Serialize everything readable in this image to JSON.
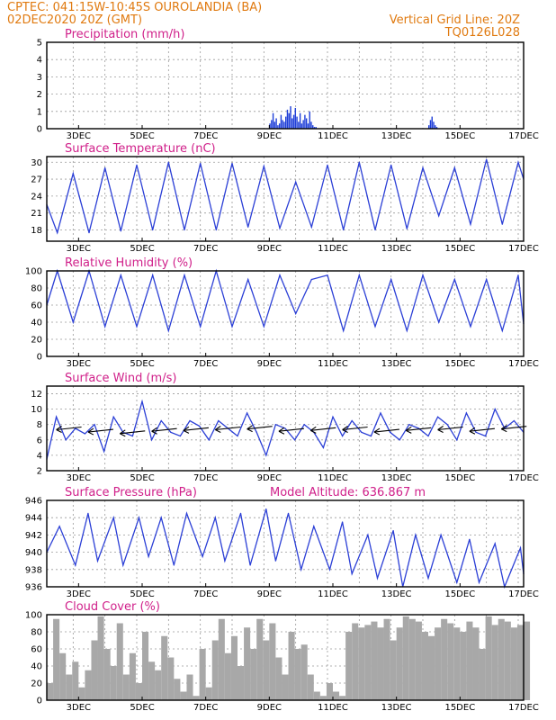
{
  "header": {
    "line1_left": "CPTEC:   041:15W-10:45S  OUROLANDIA (BA)",
    "line2_left": "02DEC2020 20Z (GMT)",
    "line1_right": "Vertical Grid Line: 20Z",
    "line2_right": "TQ0126L028"
  },
  "x_ticks": [
    "3DEC",
    "5DEC",
    "7DEC",
    "9DEC",
    "11DEC",
    "13DEC",
    "15DEC",
    "17DEC"
  ],
  "chart_data": [
    {
      "id": "precipitation",
      "type": "bar",
      "title": "Precipitation (mm/h)",
      "ylim": [
        0,
        5
      ],
      "yticks": [
        0,
        1,
        2,
        3,
        4,
        5
      ],
      "color": "#1f3fd8",
      "x_days": [
        9.0,
        9.05,
        9.1,
        9.15,
        9.2,
        9.25,
        9.3,
        9.35,
        9.4,
        9.45,
        9.5,
        9.55,
        9.6,
        9.65,
        9.7,
        9.75,
        9.8,
        9.85,
        9.9,
        9.95,
        10.0,
        10.05,
        10.1,
        10.15,
        10.2,
        10.25,
        10.3,
        10.35,
        10.4,
        10.45,
        14.0,
        14.05,
        14.1,
        14.15,
        14.2,
        14.25
      ],
      "values": [
        0.3,
        0.5,
        0.9,
        0.4,
        0.6,
        0.2,
        0.3,
        0.8,
        0.5,
        0.4,
        0.7,
        1.1,
        0.9,
        1.3,
        0.6,
        0.8,
        1.2,
        0.7,
        0.4,
        0.9,
        0.3,
        0.5,
        0.8,
        0.6,
        0.3,
        1.0,
        0.4,
        0.2,
        0.1,
        0.1,
        0.2,
        0.5,
        0.7,
        0.4,
        0.2,
        0.1
      ]
    },
    {
      "id": "temperature",
      "type": "line",
      "title": "Surface Temperature (nC)",
      "ylim": [
        16,
        31
      ],
      "yticks": [
        18,
        21,
        24,
        27,
        30
      ],
      "color": "#2b3fd6",
      "x_days": [
        2.0,
        2.33,
        2.83,
        3.33,
        3.83,
        4.33,
        4.83,
        5.33,
        5.83,
        6.33,
        6.83,
        7.33,
        7.83,
        8.33,
        8.83,
        9.33,
        9.83,
        10.33,
        10.83,
        11.33,
        11.83,
        12.33,
        12.83,
        13.33,
        13.83,
        14.33,
        14.83,
        15.33,
        15.83,
        16.33,
        16.83,
        17.0
      ],
      "values": [
        22.5,
        17.5,
        28.0,
        17.5,
        29.0,
        17.8,
        29.5,
        18.0,
        30.0,
        18.0,
        29.8,
        18.0,
        29.8,
        18.5,
        29.3,
        18.3,
        26.5,
        18.5,
        29.5,
        18.0,
        30.0,
        18.0,
        29.5,
        18.2,
        29.0,
        20.5,
        29.0,
        19.0,
        30.5,
        19.0,
        30.0,
        27.0
      ]
    },
    {
      "id": "humidity",
      "type": "line",
      "title": "Relative Humidity (%)",
      "ylim": [
        0,
        100
      ],
      "yticks": [
        0,
        20,
        40,
        60,
        80,
        100
      ],
      "color": "#2b3fd6",
      "x_days": [
        2.0,
        2.33,
        2.83,
        3.33,
        3.83,
        4.33,
        4.83,
        5.33,
        5.83,
        6.33,
        6.83,
        7.33,
        7.83,
        8.33,
        8.83,
        9.33,
        9.83,
        10.33,
        10.83,
        11.33,
        11.83,
        12.33,
        12.83,
        13.33,
        13.83,
        14.33,
        14.83,
        15.33,
        15.83,
        16.33,
        16.83,
        17.0
      ],
      "values": [
        60,
        100,
        40,
        100,
        35,
        95,
        35,
        95,
        30,
        95,
        35,
        100,
        35,
        90,
        35,
        95,
        50,
        90,
        95,
        30,
        95,
        35,
        90,
        30,
        95,
        40,
        90,
        35,
        90,
        30,
        95,
        38
      ]
    },
    {
      "id": "wind",
      "type": "line",
      "title": "Surface Wind (m/s)",
      "ylim": [
        2,
        13
      ],
      "yticks": [
        2,
        4,
        6,
        8,
        10,
        12
      ],
      "color": "#2b3fd6",
      "x_days": [
        2.0,
        2.3,
        2.6,
        2.9,
        3.2,
        3.5,
        3.8,
        4.1,
        4.4,
        4.7,
        5.0,
        5.3,
        5.6,
        5.9,
        6.2,
        6.5,
        6.8,
        7.1,
        7.4,
        7.7,
        8.0,
        8.3,
        8.6,
        8.9,
        9.2,
        9.5,
        9.8,
        10.1,
        10.4,
        10.7,
        11.0,
        11.3,
        11.6,
        11.9,
        12.2,
        12.5,
        12.8,
        13.1,
        13.4,
        13.7,
        14.0,
        14.3,
        14.6,
        14.9,
        15.2,
        15.5,
        15.8,
        16.1,
        16.4,
        16.7,
        17.0
      ],
      "values": [
        3.5,
        9.0,
        6.0,
        7.5,
        6.8,
        8.0,
        4.5,
        9.0,
        7.0,
        6.5,
        11.0,
        6.0,
        8.5,
        7.0,
        6.5,
        8.5,
        7.8,
        6.0,
        8.5,
        7.5,
        6.5,
        9.5,
        7.0,
        4.0,
        8.0,
        7.5,
        6.0,
        8.0,
        7.0,
        5.0,
        9.0,
        6.5,
        8.5,
        7.0,
        6.5,
        9.5,
        7.0,
        6.0,
        8.0,
        7.5,
        6.5,
        9.0,
        8.0,
        6.0,
        9.5,
        7.0,
        6.5,
        10.0,
        7.5,
        8.5,
        7.0
      ],
      "arrows_x_days": [
        2.3,
        3.3,
        4.3,
        5.3,
        6.3,
        7.3,
        8.3,
        9.3,
        10.3,
        11.3,
        12.3,
        13.3,
        14.3,
        15.3,
        16.3
      ],
      "arrows_y": [
        7.5,
        7.2,
        7.0,
        7.3,
        7.4,
        7.5,
        7.6,
        7.3,
        7.4,
        7.5,
        7.2,
        7.4,
        7.5,
        7.3,
        7.6
      ]
    },
    {
      "id": "pressure",
      "type": "line",
      "title": "Surface Pressure (hPa)",
      "annotation": "Model Altitude: 636.867 m",
      "ylim": [
        936,
        946
      ],
      "yticks": [
        936,
        938,
        940,
        942,
        944,
        946
      ],
      "color": "#2b3fd6",
      "x_days": [
        2.0,
        2.4,
        2.9,
        3.3,
        3.6,
        4.1,
        4.4,
        4.9,
        5.2,
        5.6,
        6.0,
        6.4,
        6.9,
        7.3,
        7.6,
        8.1,
        8.4,
        8.9,
        9.2,
        9.6,
        10.0,
        10.4,
        10.9,
        11.3,
        11.6,
        12.1,
        12.4,
        12.9,
        13.2,
        13.6,
        14.0,
        14.4,
        14.9,
        15.3,
        15.6,
        16.1,
        16.4,
        16.9,
        17.0
      ],
      "values": [
        940.0,
        943.0,
        938.5,
        944.5,
        939.0,
        944.0,
        938.5,
        944.0,
        939.5,
        944.0,
        938.5,
        944.5,
        939.5,
        944.0,
        939.0,
        944.5,
        938.5,
        945.0,
        939.0,
        944.5,
        938.0,
        943.0,
        938.0,
        943.5,
        937.5,
        942.0,
        937.0,
        942.5,
        936.0,
        942.0,
        937.0,
        942.0,
        936.5,
        941.5,
        936.5,
        941.0,
        936.0,
        940.5,
        937.5
      ]
    },
    {
      "id": "cloud",
      "type": "area",
      "title": "Cloud Cover (%)",
      "ylim": [
        0,
        100
      ],
      "yticks": [
        0,
        20,
        40,
        60,
        80,
        100
      ],
      "color": "#a8a8a8",
      "x_days": [
        2.0,
        2.2,
        2.4,
        2.6,
        2.8,
        3.0,
        3.2,
        3.4,
        3.6,
        3.8,
        4.0,
        4.2,
        4.4,
        4.6,
        4.8,
        5.0,
        5.2,
        5.4,
        5.6,
        5.8,
        6.0,
        6.2,
        6.4,
        6.6,
        6.8,
        7.0,
        7.2,
        7.4,
        7.6,
        7.8,
        8.0,
        8.2,
        8.4,
        8.6,
        8.8,
        9.0,
        9.2,
        9.4,
        9.6,
        9.8,
        10.0,
        10.2,
        10.4,
        10.6,
        10.8,
        11.0,
        11.2,
        11.4,
        11.6,
        11.8,
        12.0,
        12.2,
        12.4,
        12.6,
        12.8,
        13.0,
        13.2,
        13.4,
        13.6,
        13.8,
        14.0,
        14.2,
        14.4,
        14.6,
        14.8,
        15.0,
        15.2,
        15.4,
        15.6,
        15.8,
        16.0,
        16.2,
        16.4,
        16.6,
        16.8,
        17.0
      ],
      "values": [
        20,
        95,
        55,
        30,
        45,
        15,
        35,
        70,
        98,
        60,
        40,
        90,
        30,
        55,
        20,
        80,
        45,
        35,
        75,
        50,
        25,
        10,
        30,
        5,
        60,
        15,
        70,
        95,
        55,
        75,
        40,
        85,
        60,
        95,
        70,
        90,
        50,
        30,
        80,
        60,
        65,
        30,
        10,
        5,
        20,
        10,
        5,
        80,
        90,
        85,
        88,
        92,
        85,
        95,
        70,
        85,
        98,
        95,
        92,
        80,
        75,
        85,
        95,
        90,
        85,
        80,
        92,
        85,
        60,
        98,
        88,
        95,
        92,
        85,
        88,
        92
      ]
    }
  ]
}
